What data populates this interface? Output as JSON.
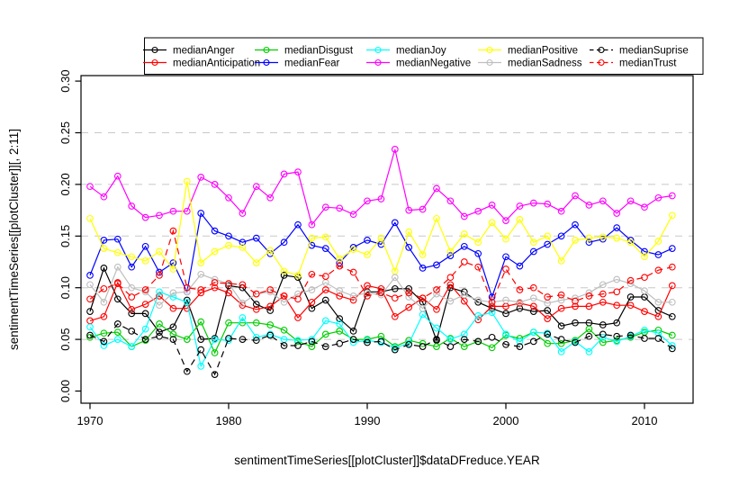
{
  "chart_data": {
    "type": "line",
    "title": "",
    "xlabel": "sentimentTimeSeries[[plotCluster]]$dataDFreduce.YEAR",
    "ylabel": "sentimentTimeSeries[[plotCluster]][, 2:11]",
    "xlim": [
      1968.5,
      2013.5
    ],
    "ylim": [
      0.0,
      0.3
    ],
    "x_ticks": [
      1970,
      1980,
      1990,
      2000,
      2010
    ],
    "y_ticks": [
      0.0,
      0.05,
      0.1,
      0.15,
      0.2,
      0.25,
      0.3
    ],
    "y_tick_labels": [
      "0.00",
      "0.05",
      "0.10",
      "0.15",
      "0.20",
      "0.25",
      "0.30"
    ],
    "grid": "horizontal dashed",
    "grid_values": [
      0.05,
      0.1,
      0.15,
      0.2,
      0.25
    ],
    "grid_color": "#c8c8c8",
    "legend_position": "top boxed, 5 columns, 2 rows",
    "marker": "open-circle",
    "x": [
      1970,
      1971,
      1972,
      1973,
      1974,
      1975,
      1976,
      1977,
      1978,
      1979,
      1980,
      1981,
      1982,
      1983,
      1984,
      1985,
      1986,
      1987,
      1988,
      1989,
      1990,
      1991,
      1992,
      1993,
      1994,
      1995,
      1996,
      1997,
      1998,
      1999,
      2000,
      2001,
      2002,
      2003,
      2004,
      2005,
      2006,
      2007,
      2008,
      2009,
      2010,
      2011,
      2012
    ],
    "series": [
      {
        "name": "medianAnger",
        "color": "#000000",
        "linetype": "solid",
        "values": [
          0.077,
          0.119,
          0.089,
          0.075,
          0.075,
          0.057,
          0.062,
          0.088,
          0.05,
          0.051,
          0.102,
          0.1,
          0.084,
          0.078,
          0.112,
          0.11,
          0.08,
          0.088,
          0.07,
          0.058,
          0.096,
          0.096,
          0.099,
          0.099,
          0.086,
          0.049,
          0.1,
          0.096,
          0.086,
          0.08,
          0.075,
          0.08,
          0.077,
          0.078,
          0.063,
          0.066,
          0.066,
          0.064,
          0.066,
          0.091,
          0.091,
          0.078,
          0.072
        ]
      },
      {
        "name": "medianAnticipation",
        "color": "#FF0000",
        "linetype": "solid",
        "values": [
          0.068,
          0.072,
          0.105,
          0.079,
          0.084,
          0.092,
          0.08,
          0.08,
          0.095,
          0.1,
          0.095,
          0.083,
          0.079,
          0.082,
          0.092,
          0.071,
          0.086,
          0.098,
          0.092,
          0.088,
          0.102,
          0.099,
          0.072,
          0.081,
          0.09,
          0.079,
          0.103,
          0.087,
          0.069,
          0.082,
          0.082,
          0.085,
          0.082,
          0.07,
          0.08,
          0.082,
          0.082,
          0.086,
          0.083,
          0.083,
          0.077,
          0.072,
          0.102
        ]
      },
      {
        "name": "medianDisgust",
        "color": "#00CD00",
        "linetype": "solid",
        "values": [
          0.052,
          0.056,
          0.057,
          0.043,
          0.049,
          0.065,
          0.055,
          0.05,
          0.067,
          0.037,
          0.066,
          0.066,
          0.066,
          0.064,
          0.059,
          0.048,
          0.043,
          0.055,
          0.058,
          0.05,
          0.05,
          0.053,
          0.043,
          0.049,
          0.046,
          0.043,
          0.051,
          0.043,
          0.048,
          0.042,
          0.054,
          0.051,
          0.057,
          0.046,
          0.046,
          0.049,
          0.06,
          0.047,
          0.049,
          0.052,
          0.057,
          0.059,
          0.054
        ]
      },
      {
        "name": "medianFear",
        "color": "#0000FF",
        "linetype": "solid",
        "values": [
          0.112,
          0.146,
          0.147,
          0.12,
          0.14,
          0.115,
          0.124,
          0.096,
          0.172,
          0.155,
          0.15,
          0.144,
          0.148,
          0.133,
          0.144,
          0.161,
          0.141,
          0.138,
          0.124,
          0.139,
          0.146,
          0.142,
          0.163,
          0.139,
          0.119,
          0.122,
          0.131,
          0.14,
          0.133,
          0.091,
          0.13,
          0.121,
          0.135,
          0.142,
          0.15,
          0.161,
          0.144,
          0.147,
          0.158,
          0.146,
          0.135,
          0.132,
          0.138
        ]
      },
      {
        "name": "medianJoy",
        "color": "#00FFFF",
        "linetype": "solid",
        "values": [
          0.062,
          0.044,
          0.05,
          0.043,
          0.06,
          0.096,
          0.091,
          0.086,
          0.024,
          0.05,
          0.049,
          0.071,
          0.052,
          0.055,
          0.05,
          0.049,
          0.05,
          0.068,
          0.065,
          0.047,
          0.049,
          0.047,
          0.042,
          0.046,
          0.074,
          0.061,
          0.05,
          0.055,
          0.073,
          0.076,
          0.055,
          0.048,
          0.057,
          0.056,
          0.038,
          0.048,
          0.038,
          0.052,
          0.048,
          0.053,
          0.059,
          0.056,
          0.044
        ]
      },
      {
        "name": "medianNegative",
        "color": "#FF00FF",
        "linetype": "solid",
        "values": [
          0.198,
          0.188,
          0.208,
          0.179,
          0.168,
          0.17,
          0.174,
          0.174,
          0.207,
          0.2,
          0.187,
          0.172,
          0.198,
          0.187,
          0.21,
          0.212,
          0.161,
          0.178,
          0.177,
          0.171,
          0.184,
          0.186,
          0.234,
          0.175,
          0.176,
          0.196,
          0.184,
          0.169,
          0.174,
          0.18,
          0.165,
          0.179,
          0.182,
          0.181,
          0.174,
          0.189,
          0.18,
          0.184,
          0.172,
          0.184,
          0.178,
          0.187,
          0.189
        ]
      },
      {
        "name": "medianPositive",
        "color": "#FFFF00",
        "linetype": "solid",
        "values": [
          0.167,
          0.138,
          0.134,
          0.13,
          0.126,
          0.135,
          0.118,
          0.203,
          0.124,
          0.135,
          0.141,
          0.139,
          0.124,
          0.136,
          0.116,
          0.112,
          0.148,
          0.149,
          0.128,
          0.137,
          0.132,
          0.148,
          0.116,
          0.154,
          0.132,
          0.167,
          0.135,
          0.152,
          0.144,
          0.163,
          0.147,
          0.166,
          0.144,
          0.15,
          0.126,
          0.146,
          0.148,
          0.149,
          0.148,
          0.144,
          0.13,
          0.145,
          0.17
        ]
      },
      {
        "name": "medianSadness",
        "color": "#BEBEBE",
        "linetype": "solid",
        "values": [
          0.103,
          0.086,
          0.12,
          0.1,
          0.096,
          0.083,
          0.095,
          0.096,
          0.113,
          0.108,
          0.104,
          0.085,
          0.094,
          0.096,
          0.086,
          0.094,
          0.098,
          0.105,
          0.097,
          0.092,
          0.095,
          0.093,
          0.11,
          0.091,
          0.08,
          0.094,
          0.087,
          0.093,
          0.088,
          0.086,
          0.088,
          0.086,
          0.09,
          0.085,
          0.088,
          0.09,
          0.095,
          0.103,
          0.108,
          0.104,
          0.097,
          0.086,
          0.086
        ]
      },
      {
        "name": "medianSuprise",
        "color": "#000000",
        "linetype": "dashed",
        "values": [
          0.054,
          0.048,
          0.065,
          0.058,
          0.05,
          0.053,
          0.05,
          0.019,
          0.04,
          0.016,
          0.051,
          0.05,
          0.049,
          0.054,
          0.044,
          0.044,
          0.048,
          0.043,
          0.046,
          0.05,
          0.047,
          0.048,
          0.04,
          0.045,
          0.043,
          0.05,
          0.043,
          0.05,
          0.048,
          0.052,
          0.045,
          0.043,
          0.048,
          0.055,
          0.05,
          0.047,
          0.053,
          0.055,
          0.053,
          0.054,
          0.051,
          0.051,
          0.041
        ]
      },
      {
        "name": "medianTrust",
        "color": "#FF0000",
        "linetype": "dashed",
        "values": [
          0.089,
          0.099,
          0.104,
          0.091,
          0.098,
          0.112,
          0.155,
          0.1,
          0.098,
          0.105,
          0.104,
          0.103,
          0.094,
          0.098,
          0.092,
          0.089,
          0.113,
          0.111,
          0.121,
          0.115,
          0.092,
          0.095,
          0.09,
          0.095,
          0.09,
          0.098,
          0.11,
          0.125,
          0.12,
          0.086,
          0.118,
          0.098,
          0.1,
          0.091,
          0.093,
          0.087,
          0.092,
          0.094,
          0.096,
          0.107,
          0.11,
          0.117,
          0.12
        ]
      }
    ],
    "legend_columns": 5,
    "legend_rows": [
      [
        "medianAnger",
        "medianDisgust",
        "medianJoy",
        "medianPositive",
        "medianSuprise"
      ],
      [
        "medianAnticipation",
        "medianFear",
        "medianNegative",
        "medianSadness",
        "medianTrust"
      ]
    ]
  }
}
